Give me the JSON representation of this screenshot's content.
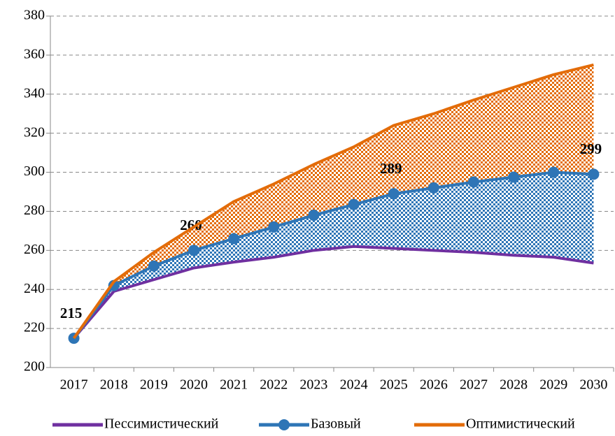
{
  "chart_data": {
    "type": "line",
    "categories": [
      "2017",
      "2018",
      "2019",
      "2020",
      "2021",
      "2022",
      "2023",
      "2024",
      "2025",
      "2026",
      "2027",
      "2028",
      "2029",
      "2030"
    ],
    "series": [
      {
        "name": "Пессимистический",
        "color": "#7030a0",
        "values": [
          215,
          239,
          245,
          251,
          254,
          256.5,
          260,
          262,
          261,
          260,
          259,
          257.5,
          256.5,
          253.5
        ]
      },
      {
        "name": "Базовый",
        "color": "#2e75b6",
        "values": [
          215,
          242,
          252,
          260,
          266,
          272,
          278,
          283.5,
          289,
          292,
          295,
          297.5,
          300,
          299
        ],
        "value_labels": [
          "215",
          null,
          null,
          "260",
          null,
          null,
          null,
          null,
          "289",
          null,
          null,
          null,
          null,
          "299"
        ],
        "markers": true
      },
      {
        "name": "Оптимистический",
        "color": "#e36c09",
        "values": [
          215,
          244,
          259,
          272,
          285,
          294,
          304,
          313,
          324,
          330,
          337,
          343.5,
          350,
          355
        ]
      }
    ],
    "ylim": [
      200,
      380
    ],
    "yticks": [
      200,
      220,
      240,
      260,
      280,
      300,
      320,
      340,
      360,
      380
    ],
    "grid": true,
    "legend": "bottom"
  }
}
